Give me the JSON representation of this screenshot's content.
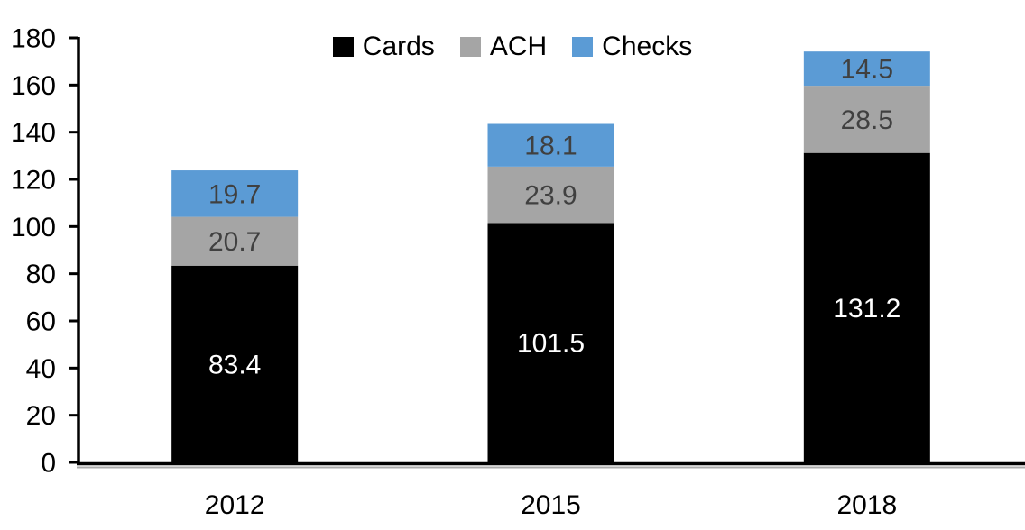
{
  "chart_data": {
    "type": "bar",
    "stacked": true,
    "title": "",
    "xlabel": "",
    "ylabel": "",
    "categories": [
      "2012",
      "2015",
      "2018"
    ],
    "series": [
      {
        "name": "Cards",
        "color": "#000000",
        "label_color": "#FFFFFF",
        "values": [
          83.4,
          101.5,
          131.2
        ]
      },
      {
        "name": "ACH",
        "color": "#A5A5A5",
        "label_color": "#404040",
        "values": [
          20.7,
          23.9,
          28.5
        ]
      },
      {
        "name": "Checks",
        "color": "#5B9BD5",
        "label_color": "#404040",
        "values": [
          19.7,
          18.1,
          14.5
        ]
      }
    ],
    "stack_order_bottom_to_top": [
      "Cards",
      "ACH",
      "Checks"
    ],
    "ylim": [
      0,
      180
    ],
    "yticks": [
      0,
      20,
      40,
      60,
      80,
      100,
      120,
      140,
      160,
      180
    ],
    "grid": false,
    "legend_position": "top-center"
  },
  "colors": {
    "background": "#FFFFFF",
    "axis": "#000000",
    "axis_shadow": "#ABABAB",
    "tick_label": "#000000",
    "legend_text": "#000000"
  }
}
